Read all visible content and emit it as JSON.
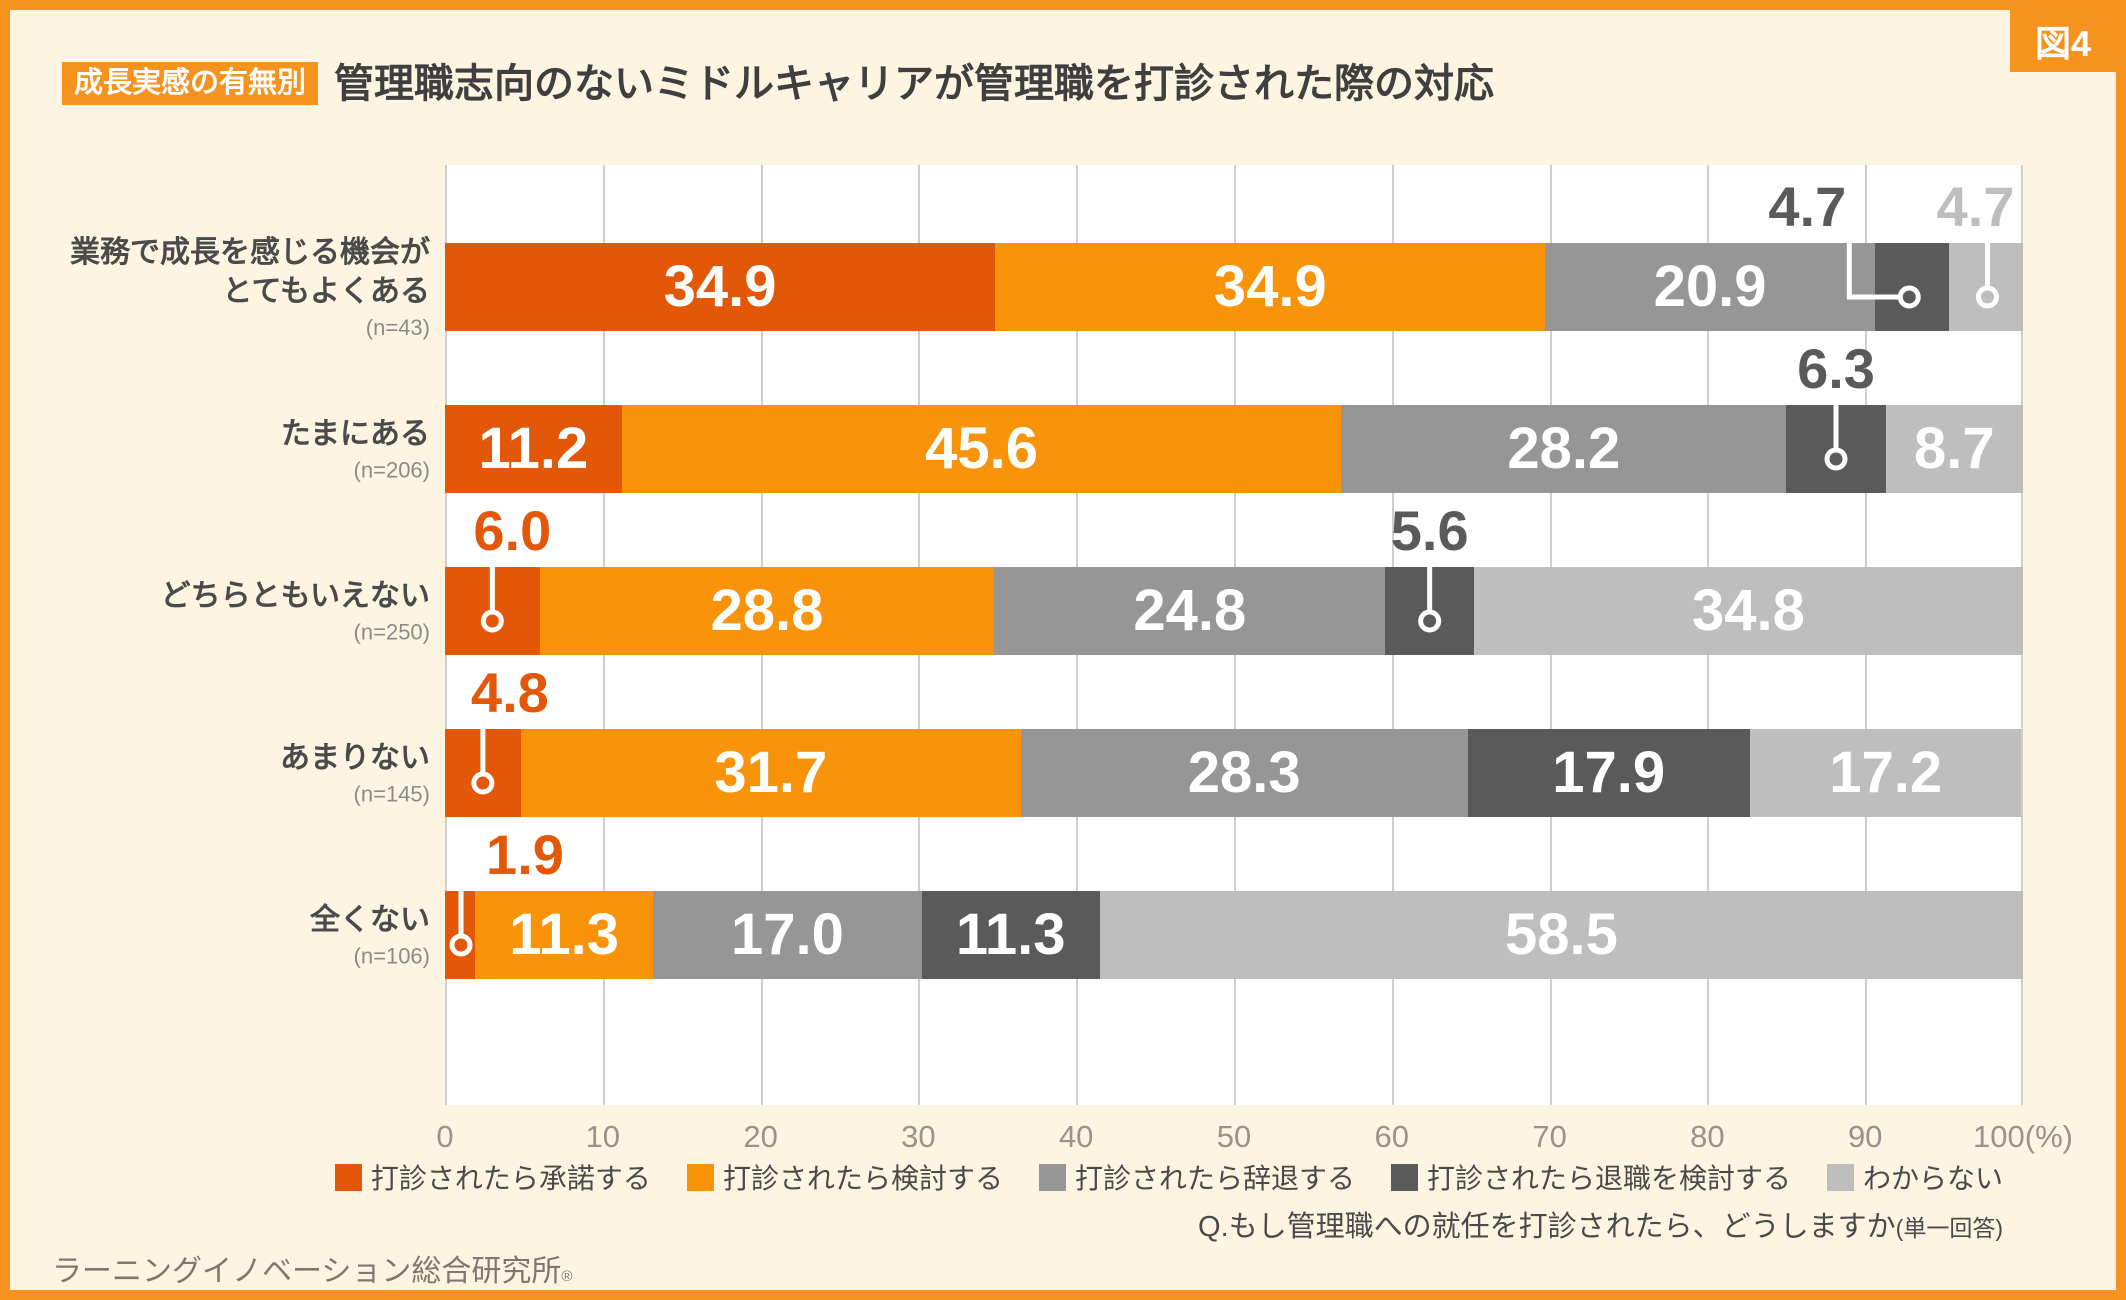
{
  "figure_label": "図4",
  "header": {
    "tag": "成長実感の有無別",
    "title": "管理職志向のないミドルキャリアが管理職を打診された際の対応"
  },
  "colors": {
    "frame_accent": "#f6921e",
    "background": "#fdf4e2",
    "plot_background": "#ffffff",
    "gridline": "#cfcfcf",
    "title_text": "#3f3f3f",
    "axis_text": "#98948a"
  },
  "chart_data": {
    "type": "bar",
    "orientation": "horizontal-stacked",
    "unit": "%",
    "xlim": [
      0,
      100
    ],
    "x_ticks": [
      0,
      10,
      20,
      30,
      40,
      50,
      60,
      70,
      80,
      90,
      100
    ],
    "x_axis_last_tick_label": "100(%)",
    "grid": true,
    "legend_position": "bottom",
    "series_names": [
      "打診されたら承諾する",
      "打診されたら検討する",
      "打診されたら辞退する",
      "打診されたら退職を検討する",
      "わからない"
    ],
    "series_colors": [
      "#e25708",
      "#f9930a",
      "#969696",
      "#5a5a5a",
      "#bebebe"
    ],
    "rows": [
      {
        "category_lines": [
          "業務で成長を感じる機会が",
          "とてもよくある"
        ],
        "n": "(n=43)",
        "values": [
          34.9,
          34.9,
          20.9,
          4.7,
          4.7
        ],
        "value_labels": [
          "34.9",
          "34.9",
          "20.9",
          "4.7",
          "4.7"
        ]
      },
      {
        "category_lines": [
          "たまにある"
        ],
        "n": "(n=206)",
        "values": [
          11.2,
          45.6,
          28.2,
          6.3,
          8.7
        ],
        "value_labels": [
          "11.2",
          "45.6",
          "28.2",
          "6.3",
          "8.7"
        ]
      },
      {
        "category_lines": [
          "どちらともいえない"
        ],
        "n": "(n=250)",
        "values": [
          6.0,
          28.8,
          24.8,
          5.6,
          34.8
        ],
        "value_labels": [
          "6.0",
          "28.8",
          "24.8",
          "5.6",
          "34.8"
        ]
      },
      {
        "category_lines": [
          "あまりない"
        ],
        "n": "(n=145)",
        "values": [
          4.8,
          31.7,
          28.3,
          17.9,
          17.2
        ],
        "value_labels": [
          "4.8",
          "31.7",
          "28.3",
          "17.9",
          "17.2"
        ]
      },
      {
        "category_lines": [
          "全くない"
        ],
        "n": "(n=106)",
        "values": [
          1.9,
          11.3,
          17.0,
          11.3,
          58.5
        ],
        "value_labels": [
          "1.9",
          "11.3",
          "17.0",
          "11.3",
          "58.5"
        ]
      }
    ],
    "callout_segments": [
      [
        3,
        4
      ],
      [
        3
      ],
      [
        0,
        3
      ],
      [
        0
      ],
      [
        0
      ]
    ]
  },
  "legend": {
    "items": [
      "打診されたら承諾する",
      "打診されたら検討する",
      "打診されたら辞退する",
      "打診されたら退職を検討する",
      "わからない"
    ]
  },
  "footer": {
    "question_main": "Q.もし管理職への就任を打診されたら、どうしますか",
    "question_note": "(単一回答)",
    "source": "ラーニングイノベーション総合研究所",
    "source_mark": "®"
  }
}
